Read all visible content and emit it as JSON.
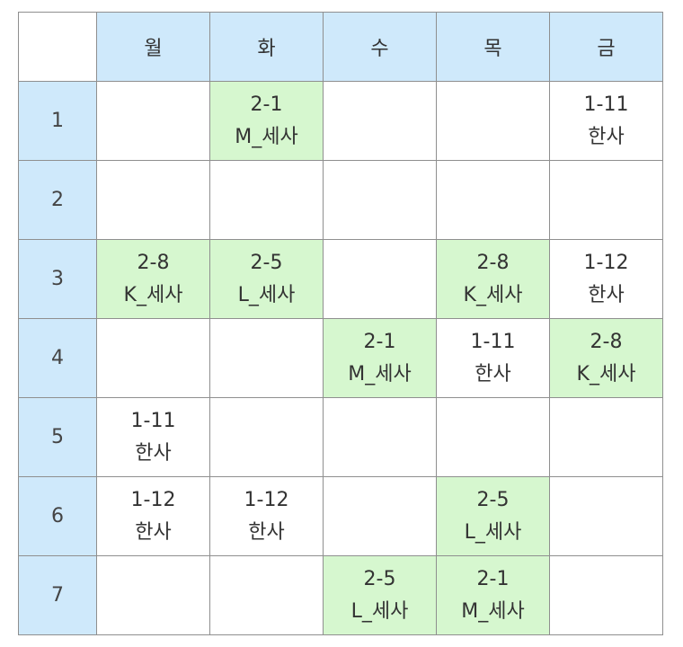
{
  "colors": {
    "header_bg": "#cfe9fb",
    "highlight_bg": "#d6f7cf",
    "grid_line": "#8f8f8f"
  },
  "days": [
    "월",
    "화",
    "수",
    "목",
    "금"
  ],
  "rows": [
    {
      "period": "1",
      "cells": [
        {
          "class": "",
          "subject": "",
          "highlight": false
        },
        {
          "class": "2-1",
          "subject": "M_세사",
          "highlight": true
        },
        {
          "class": "",
          "subject": "",
          "highlight": false
        },
        {
          "class": "",
          "subject": "",
          "highlight": false
        },
        {
          "class": "1-11",
          "subject": "한사",
          "highlight": false
        }
      ]
    },
    {
      "period": "2",
      "cells": [
        {
          "class": "",
          "subject": "",
          "highlight": false
        },
        {
          "class": "",
          "subject": "",
          "highlight": false
        },
        {
          "class": "",
          "subject": "",
          "highlight": false
        },
        {
          "class": "",
          "subject": "",
          "highlight": false
        },
        {
          "class": "",
          "subject": "",
          "highlight": false
        }
      ]
    },
    {
      "period": "3",
      "cells": [
        {
          "class": "2-8",
          "subject": "K_세사",
          "highlight": true
        },
        {
          "class": "2-5",
          "subject": "L_세사",
          "highlight": true
        },
        {
          "class": "",
          "subject": "",
          "highlight": false
        },
        {
          "class": "2-8",
          "subject": "K_세사",
          "highlight": true
        },
        {
          "class": "1-12",
          "subject": "한사",
          "highlight": false
        }
      ]
    },
    {
      "period": "4",
      "cells": [
        {
          "class": "",
          "subject": "",
          "highlight": false
        },
        {
          "class": "",
          "subject": "",
          "highlight": false
        },
        {
          "class": "2-1",
          "subject": "M_세사",
          "highlight": true
        },
        {
          "class": "1-11",
          "subject": "한사",
          "highlight": false
        },
        {
          "class": "2-8",
          "subject": "K_세사",
          "highlight": true
        }
      ]
    },
    {
      "period": "5",
      "cells": [
        {
          "class": "1-11",
          "subject": "한사",
          "highlight": false
        },
        {
          "class": "",
          "subject": "",
          "highlight": false
        },
        {
          "class": "",
          "subject": "",
          "highlight": false
        },
        {
          "class": "",
          "subject": "",
          "highlight": false
        },
        {
          "class": "",
          "subject": "",
          "highlight": false
        }
      ]
    },
    {
      "period": "6",
      "cells": [
        {
          "class": "1-12",
          "subject": "한사",
          "highlight": false
        },
        {
          "class": "1-12",
          "subject": "한사",
          "highlight": false
        },
        {
          "class": "",
          "subject": "",
          "highlight": false
        },
        {
          "class": "2-5",
          "subject": "L_세사",
          "highlight": true
        },
        {
          "class": "",
          "subject": "",
          "highlight": false
        }
      ]
    },
    {
      "period": "7",
      "cells": [
        {
          "class": "",
          "subject": "",
          "highlight": false
        },
        {
          "class": "",
          "subject": "",
          "highlight": false
        },
        {
          "class": "2-5",
          "subject": "L_세사",
          "highlight": true
        },
        {
          "class": "2-1",
          "subject": "M_세사",
          "highlight": true
        },
        {
          "class": "",
          "subject": "",
          "highlight": false
        }
      ]
    }
  ]
}
